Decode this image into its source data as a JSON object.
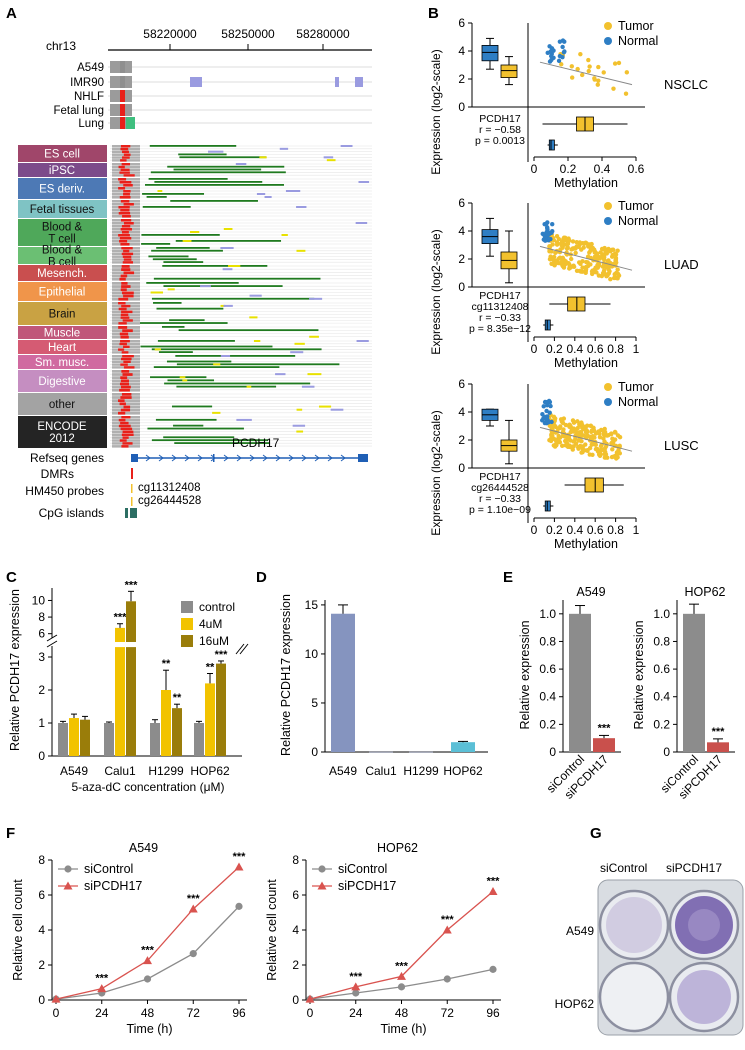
{
  "panels": {
    "A": "A",
    "B": "B",
    "C": "C",
    "D": "D",
    "E": "E",
    "F": "F",
    "G": "G"
  },
  "panelA": {
    "chrom": "chr13",
    "coords": [
      "58220000",
      "58250000",
      "58280000"
    ],
    "cell_lines": [
      "A549",
      "IMR90",
      "NHLF",
      "Fetal lung",
      "Lung"
    ],
    "tissue_groups": [
      {
        "label": "ES cell",
        "color": "#a0466a",
        "dark": false
      },
      {
        "label": "iPSC",
        "color": "#7c4b8a",
        "dark": false
      },
      {
        "label": "ES deriv.",
        "color": "#4d79b5",
        "dark": false
      },
      {
        "label": "Fetal tissues",
        "color": "#7fc3c4",
        "dark": true
      },
      {
        "label": "Blood &\nT cell",
        "color": "#4fa85a",
        "dark": true
      },
      {
        "label": "Blood &\nB cell",
        "color": "#6bbf73",
        "dark": true
      },
      {
        "label": "Mesench.",
        "color": "#c94f4f",
        "dark": false
      },
      {
        "label": "Epithelial",
        "color": "#f0954a",
        "dark": false
      },
      {
        "label": "Brain",
        "color": "#c9a243",
        "dark": true
      },
      {
        "label": "Muscle",
        "color": "#c0577a",
        "dark": false
      },
      {
        "label": "Heart",
        "color": "#d55b73",
        "dark": false
      },
      {
        "label": "Sm. musc.",
        "color": "#d06aa0",
        "dark": false
      },
      {
        "label": "Digestive",
        "color": "#c58ec1",
        "dark": false
      },
      {
        "label": "other",
        "color": "#a3a3a3",
        "dark": true
      },
      {
        "label": "ENCODE\n2012",
        "color": "#242424",
        "dark": false
      }
    ],
    "gene": "PCDH17",
    "tracks": [
      "Refseq genes",
      "DMRs",
      "HM450 probes",
      "CpG islands"
    ],
    "probes": [
      "cg11312408",
      "cg26444528"
    ]
  },
  "panelB": {
    "ylabel": "Expression (log2-scale)",
    "xlabel": "Methylation",
    "legend": [
      "Tumor",
      "Normal"
    ],
    "colors": {
      "tumor": "#f2c12e",
      "normal": "#2e7ec4"
    },
    "subpanels": [
      {
        "name": "NSCLC",
        "stats": [
          "PCDH17",
          "r = −0.58",
          "p = 0.0013"
        ],
        "xticks": [
          "0",
          "0.2",
          "0.4",
          "0.6"
        ],
        "yticks": [
          "0",
          "2",
          "4",
          "6"
        ]
      },
      {
        "name": "LUAD",
        "stats": [
          "PCDH17",
          "cg11312408",
          "r = −0.33",
          "p = 8.35e−12"
        ],
        "xticks": [
          "0",
          "0.2",
          "0.4",
          "0.6",
          "0.8",
          "1"
        ],
        "yticks": [
          "0",
          "2",
          "4",
          "6"
        ]
      },
      {
        "name": "LUSC",
        "stats": [
          "PCDH17",
          "cg26444528",
          "r = −0.33",
          "p = 1.10e−09"
        ],
        "xticks": [
          "0",
          "0.2",
          "0.4",
          "0.6",
          "0.8",
          "1"
        ],
        "yticks": [
          "0",
          "2",
          "4",
          "6"
        ]
      }
    ]
  },
  "chart_data": [
    {
      "type": "bar",
      "panel": "C",
      "ylabel": "Relative PCDH17 expression",
      "xlabel": "5-aza-dC concentration (μM)",
      "categories": [
        "A549",
        "Calu1",
        "H1299",
        "HOP62"
      ],
      "series": [
        {
          "name": "control",
          "color": "#8c8c8c",
          "values": [
            1.0,
            1.0,
            1.0,
            1.0
          ],
          "errors": [
            0.05,
            0.03,
            0.1,
            0.05
          ]
        },
        {
          "name": "4uM",
          "color": "#f2c300",
          "values": [
            1.15,
            6.7,
            2.0,
            2.2
          ],
          "errors": [
            0.12,
            0.5,
            0.6,
            0.3
          ]
        },
        {
          "name": "16uM",
          "color": "#9a7d0a",
          "values": [
            1.1,
            9.9,
            1.45,
            2.8
          ],
          "errors": [
            0.1,
            1.2,
            0.12,
            0.08
          ]
        }
      ],
      "significance": [
        [
          "",
          "",
          ""
        ],
        [
          "",
          "***",
          "***"
        ],
        [
          "",
          "**",
          "**"
        ],
        [
          "",
          "**",
          "***"
        ]
      ],
      "yticks_lower": [
        "0",
        "1",
        "2",
        "3"
      ],
      "yticks_upper": [
        "6",
        "8",
        "10"
      ]
    },
    {
      "type": "bar",
      "panel": "D",
      "ylabel": "Relative PCDH17 expression",
      "categories": [
        "A549",
        "Calu1",
        "H1299",
        "HOP62"
      ],
      "values": [
        14.1,
        0.02,
        0.02,
        1.0
      ],
      "errors": [
        0.9,
        0,
        0,
        0.08
      ],
      "colors": [
        "#8594bf",
        "#8594bf",
        "#8594bf",
        "#5bbfd6"
      ],
      "yticks": [
        "0",
        "5",
        "10",
        "15"
      ],
      "ylim": [
        0,
        15.5
      ]
    },
    {
      "type": "bar",
      "panel": "E",
      "ylabel": "Relative expression",
      "subcharts": [
        {
          "title": "A549",
          "categories": [
            "siControl",
            "siPCDH17"
          ],
          "values": [
            1.0,
            0.1
          ],
          "errors": [
            0.06,
            0.02
          ],
          "colors": [
            "#8c8c8c",
            "#c9504c"
          ],
          "significance": [
            "",
            "***"
          ]
        },
        {
          "title": "HOP62",
          "categories": [
            "siControl",
            "siPCDH17"
          ],
          "values": [
            1.0,
            0.07
          ],
          "errors": [
            0.07,
            0.025
          ],
          "colors": [
            "#8c8c8c",
            "#c9504c"
          ],
          "significance": [
            "",
            "***"
          ]
        }
      ],
      "yticks": [
        "0",
        "0.2",
        "0.4",
        "0.6",
        "0.8",
        "1.0"
      ],
      "ylim": [
        0,
        1.1
      ]
    },
    {
      "type": "line",
      "panel": "F",
      "ylabel": "Relative cell count",
      "xlabel": "Time (h)",
      "x": [
        0,
        24,
        48,
        72,
        96
      ],
      "xticks": [
        "0",
        "24",
        "48",
        "72",
        "96"
      ],
      "yticks": [
        "0",
        "2",
        "4",
        "6",
        "8"
      ],
      "ylim": [
        0,
        8
      ],
      "subcharts": [
        {
          "title": "A549",
          "series": [
            {
              "name": "siControl",
              "color": "#8c8c8c",
              "values": [
                0.05,
                0.4,
                1.2,
                2.65,
                5.35
              ]
            },
            {
              "name": "siPCDH17",
              "color": "#d9534f",
              "values": [
                0.05,
                0.65,
                2.25,
                5.2,
                7.6
              ]
            }
          ],
          "significance": [
            "",
            "***",
            "***",
            "***",
            "***"
          ]
        },
        {
          "title": "HOP62",
          "series": [
            {
              "name": "siControl",
              "color": "#8c8c8c",
              "values": [
                0.05,
                0.4,
                0.75,
                1.2,
                1.75
              ]
            },
            {
              "name": "siPCDH17",
              "color": "#d9534f",
              "values": [
                0.05,
                0.75,
                1.35,
                4.0,
                6.2
              ]
            }
          ],
          "significance": [
            "",
            "***",
            "***",
            "***",
            "***"
          ]
        }
      ]
    }
  ],
  "panelG": {
    "columns": [
      "siControl",
      "siPCDH17"
    ],
    "rows": [
      "A549",
      "HOP62"
    ]
  }
}
